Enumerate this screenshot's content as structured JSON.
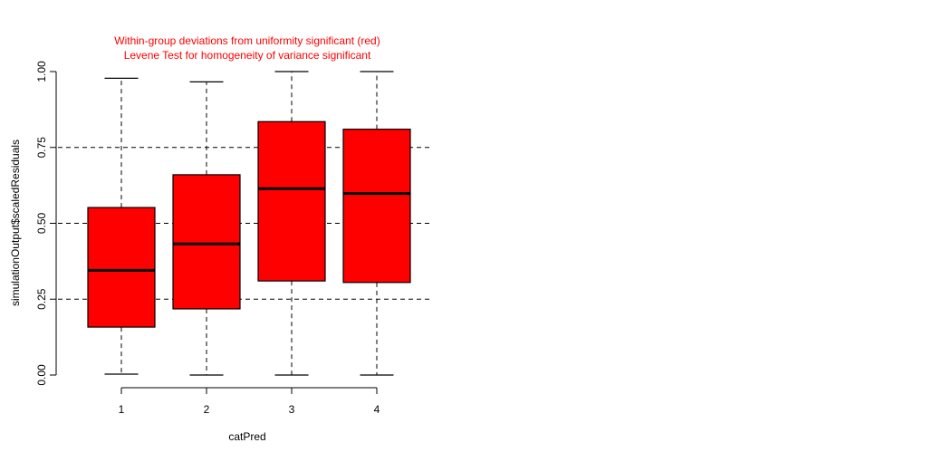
{
  "chart_data": {
    "type": "boxplot",
    "title_lines": [
      "Within-group deviations from uniformity significant (red)",
      "Levene Test for homogeneity of variance significant"
    ],
    "title_color": "#ff0000",
    "xlabel": "catPred",
    "ylabel": "simulationOutput$scaledResiduals",
    "ylim": [
      0,
      1
    ],
    "y_ticks": [
      {
        "value": 0.0,
        "label": "0.00"
      },
      {
        "value": 0.25,
        "label": "0.25"
      },
      {
        "value": 0.5,
        "label": "0.50"
      },
      {
        "value": 0.75,
        "label": "0.75"
      },
      {
        "value": 1.0,
        "label": "1.00"
      }
    ],
    "reference_lines": [
      0.25,
      0.5,
      0.75
    ],
    "box_fill": "#ff0000",
    "categories": [
      "1",
      "2",
      "3",
      "4"
    ],
    "boxes": [
      {
        "category": "1",
        "min": 0.003,
        "q1": 0.158,
        "median": 0.345,
        "q3": 0.552,
        "max": 0.978
      },
      {
        "category": "2",
        "min": 0.0,
        "q1": 0.218,
        "median": 0.432,
        "q3": 0.66,
        "max": 0.966
      },
      {
        "category": "3",
        "min": 0.0,
        "q1": 0.31,
        "median": 0.614,
        "q3": 0.835,
        "max": 1.0
      },
      {
        "category": "4",
        "min": 0.0,
        "q1": 0.305,
        "median": 0.598,
        "q3": 0.81,
        "max": 1.0
      }
    ]
  }
}
